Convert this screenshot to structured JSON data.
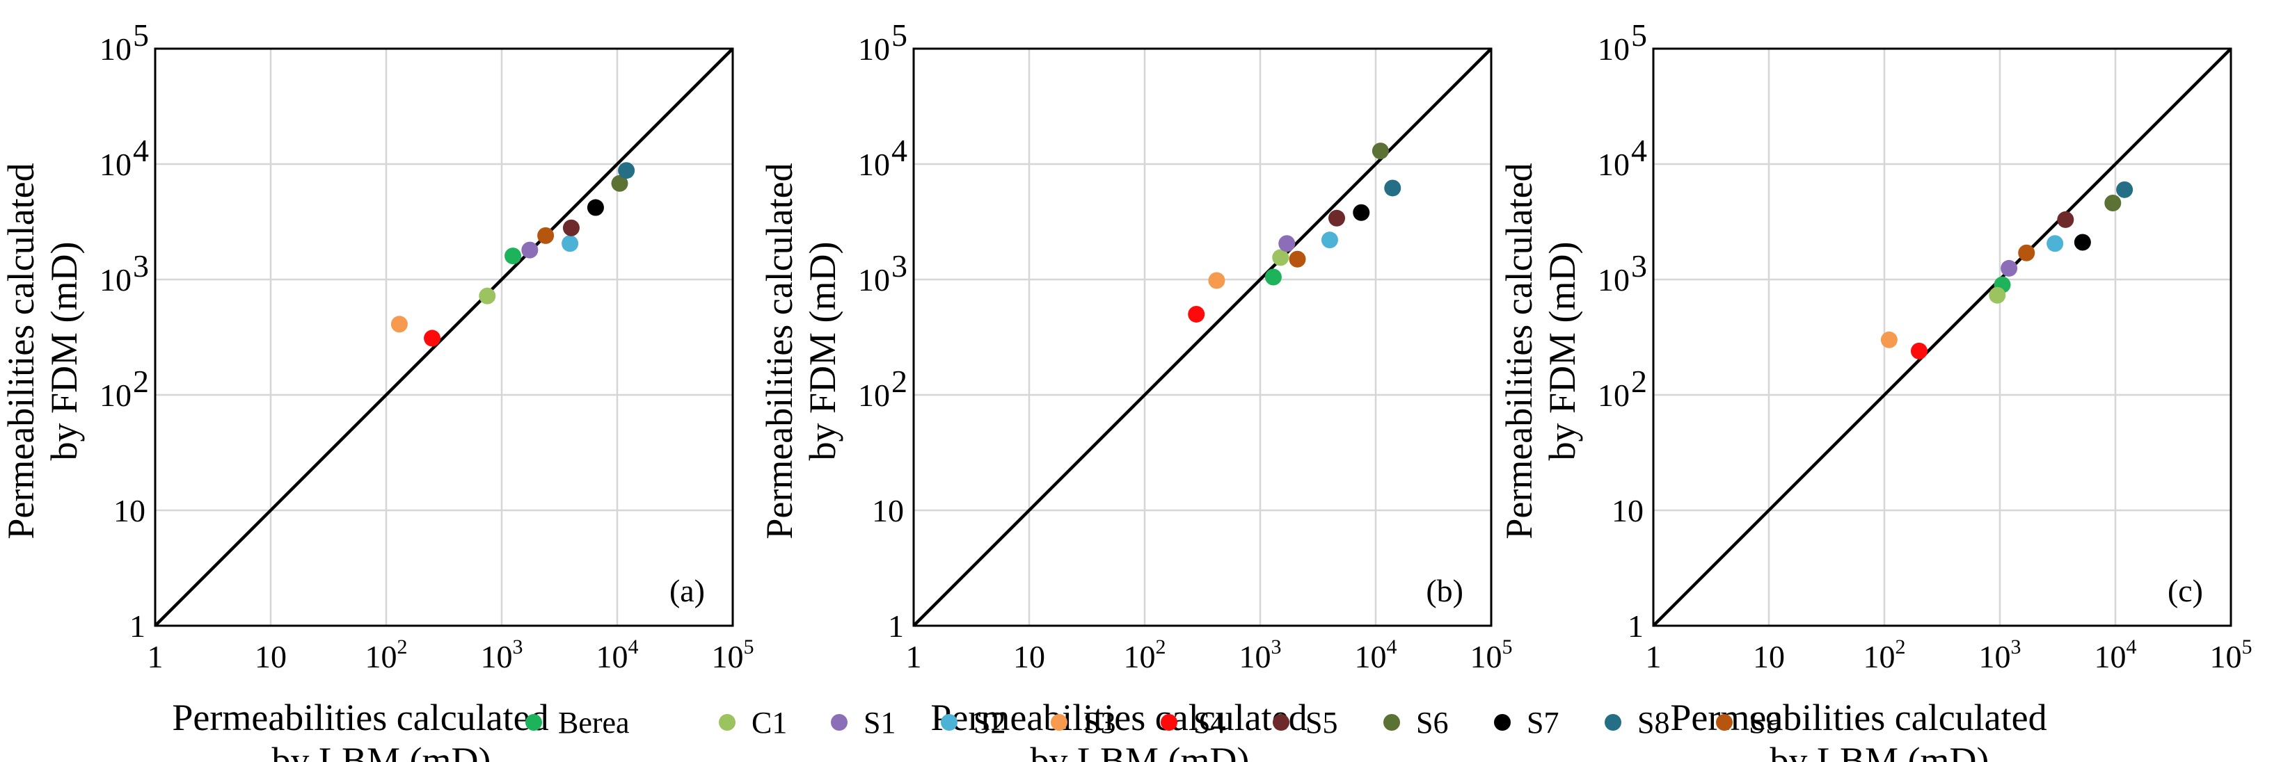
{
  "chart_data": [
    {
      "type": "scatter",
      "panel_label": "(a)",
      "xlabel": [
        "Permeabilities calculated",
        "by LBM (mD)"
      ],
      "ylabel": [
        "Permeabilities calculated",
        "by FDM (mD)"
      ],
      "xlim": [
        1,
        100000
      ],
      "ylim": [
        1,
        100000
      ],
      "scale": "log",
      "reference_line": "y = x",
      "points": [
        {
          "name": "Berea",
          "x": 1250,
          "y": 1600
        },
        {
          "name": "C1",
          "x": 750,
          "y": 720
        },
        {
          "name": "S1",
          "x": 1750,
          "y": 1800
        },
        {
          "name": "S2",
          "x": 3900,
          "y": 2050
        },
        {
          "name": "S3",
          "x": 130,
          "y": 410
        },
        {
          "name": "S4",
          "x": 250,
          "y": 310
        },
        {
          "name": "S5",
          "x": 4000,
          "y": 2800
        },
        {
          "name": "S6",
          "x": 10500,
          "y": 6800
        },
        {
          "name": "S7",
          "x": 6500,
          "y": 4200
        },
        {
          "name": "S8",
          "x": 12000,
          "y": 8800
        },
        {
          "name": "S9",
          "x": 2400,
          "y": 2400
        }
      ]
    },
    {
      "type": "scatter",
      "panel_label": "(b)",
      "xlabel": [
        "Permeabilities calculated",
        "by LBM (mD)"
      ],
      "ylabel": [
        "Permeabilities calculated",
        "by FDM (mD)"
      ],
      "xlim": [
        1,
        100000
      ],
      "ylim": [
        1,
        100000
      ],
      "scale": "log",
      "reference_line": "y = x",
      "points": [
        {
          "name": "Berea",
          "x": 1300,
          "y": 1050
        },
        {
          "name": "C1",
          "x": 1500,
          "y": 1550
        },
        {
          "name": "S1",
          "x": 1700,
          "y": 2050
        },
        {
          "name": "S2",
          "x": 4000,
          "y": 2200
        },
        {
          "name": "S3",
          "x": 420,
          "y": 980
        },
        {
          "name": "S4",
          "x": 280,
          "y": 500
        },
        {
          "name": "S5",
          "x": 4600,
          "y": 3400
        },
        {
          "name": "S6",
          "x": 11000,
          "y": 13000
        },
        {
          "name": "S7",
          "x": 7500,
          "y": 3800
        },
        {
          "name": "S8",
          "x": 14000,
          "y": 6200
        },
        {
          "name": "S9",
          "x": 2100,
          "y": 1500
        }
      ]
    },
    {
      "type": "scatter",
      "panel_label": "(c)",
      "xlabel": [
        "Permeabilities calculated",
        "by LBM (mD)"
      ],
      "ylabel": [
        "Permeabilities calculated",
        "by FDM (mD)"
      ],
      "xlim": [
        1,
        100000
      ],
      "ylim": [
        1,
        100000
      ],
      "scale": "log",
      "reference_line": "y = x",
      "points": [
        {
          "name": "Berea",
          "x": 1050,
          "y": 900
        },
        {
          "name": "C1",
          "x": 950,
          "y": 730
        },
        {
          "name": "S1",
          "x": 1200,
          "y": 1250
        },
        {
          "name": "S2",
          "x": 3000,
          "y": 2050
        },
        {
          "name": "S3",
          "x": 110,
          "y": 300
        },
        {
          "name": "S4",
          "x": 200,
          "y": 240
        },
        {
          "name": "S5",
          "x": 3700,
          "y": 3300
        },
        {
          "name": "S6",
          "x": 9500,
          "y": 4600
        },
        {
          "name": "S7",
          "x": 5200,
          "y": 2100
        },
        {
          "name": "S8",
          "x": 12000,
          "y": 6000
        },
        {
          "name": "S9",
          "x": 1700,
          "y": 1700
        }
      ]
    }
  ],
  "ticks": [
    {
      "value": 1,
      "label": "1"
    },
    {
      "value": 10,
      "label": "10"
    },
    {
      "value": 100,
      "label": "10",
      "sup": "2"
    },
    {
      "value": 1000,
      "label": "10",
      "sup": "3"
    },
    {
      "value": 10000,
      "label": "10",
      "sup": "4"
    },
    {
      "value": 100000,
      "label": "10",
      "sup": "5"
    }
  ],
  "legend": [
    {
      "name": "Berea",
      "color": "#1db35a"
    },
    {
      "name": "C1",
      "color": "#9bc35f"
    },
    {
      "name": "S1",
      "color": "#8c6eb8"
    },
    {
      "name": "S2",
      "color": "#4db3d6"
    },
    {
      "name": "S3",
      "color": "#f59a4e"
    },
    {
      "name": "S4",
      "color": "#ff0a0a"
    },
    {
      "name": "S5",
      "color": "#6e2a2a"
    },
    {
      "name": "S6",
      "color": "#5b7234"
    },
    {
      "name": "S7",
      "color": "#000000"
    },
    {
      "name": "S8",
      "color": "#246f85"
    },
    {
      "name": "S9",
      "color": "#b5550e"
    }
  ]
}
